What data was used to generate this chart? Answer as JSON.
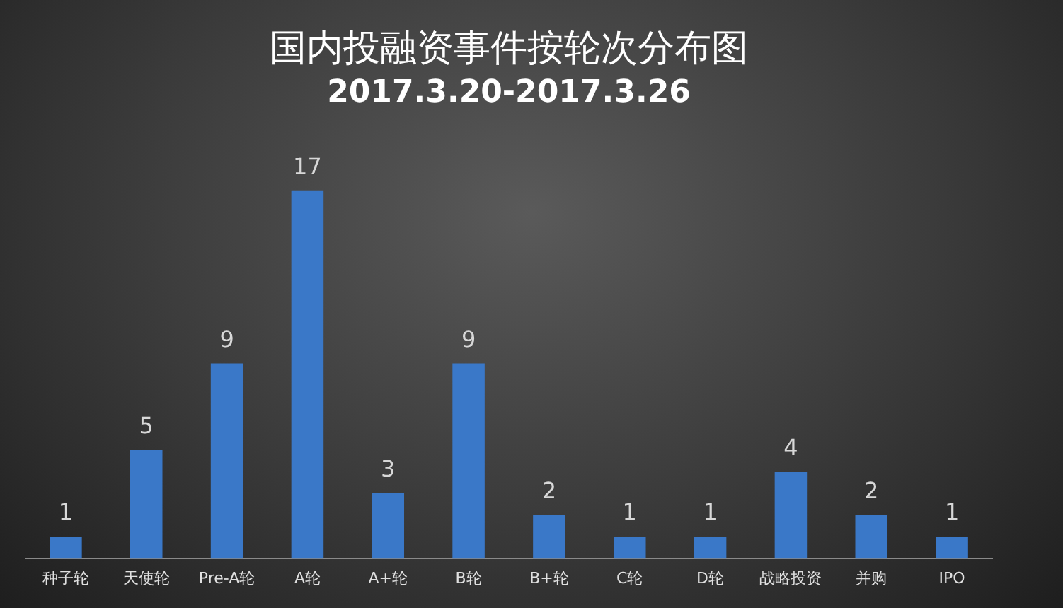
{
  "chart_data": {
    "type": "bar",
    "title": "国内投融资事件按轮次分布图",
    "subtitle": "2017.3.20-2017.3.26",
    "categories": [
      "种子轮",
      "天使轮",
      "Pre-A轮",
      "A轮",
      "A+轮",
      "B轮",
      "B+轮",
      "C轮",
      "D轮",
      "战略投资",
      "并购",
      "IPO"
    ],
    "values": [
      1,
      5,
      9,
      17,
      3,
      9,
      2,
      1,
      1,
      4,
      2,
      1
    ],
    "color": "#3a78c8",
    "data_labels": true,
    "grid": false,
    "legend": false
  }
}
